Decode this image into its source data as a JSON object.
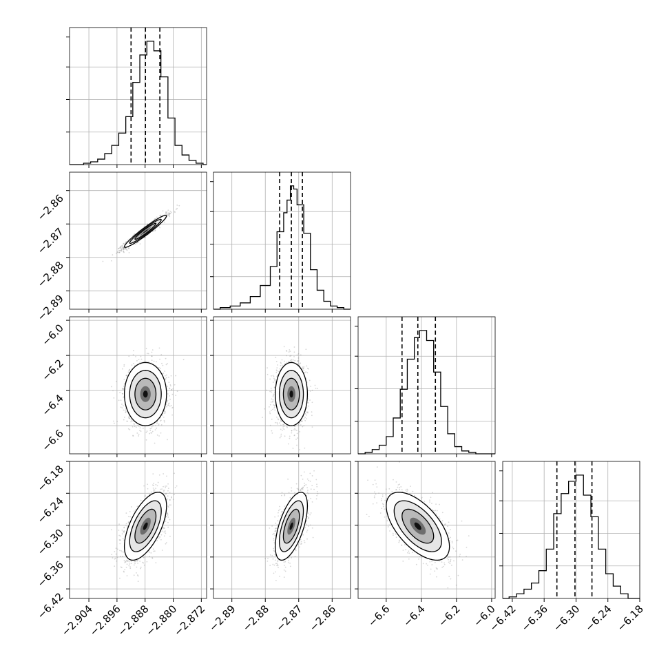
{
  "chart_data": {
    "type": "corner",
    "n_params": 4,
    "grid": true,
    "parameters": [
      {
        "quantiles": [
          -2.892,
          -2.8879,
          -2.8838
        ],
        "range": [
          -2.9095,
          -2.8705
        ],
        "ticks": [
          {
            "value": -2.904,
            "label": "−2.904"
          },
          {
            "value": -2.896,
            "label": "−2.896"
          },
          {
            "value": -2.888,
            "label": "−2.888"
          },
          {
            "value": -2.88,
            "label": "−2.880"
          },
          {
            "value": -2.872,
            "label": "−2.872"
          }
        ],
        "histogram": [
          {
            "left": -2.9095,
            "right": -2.9055,
            "count": 0
          },
          {
            "left": -2.9055,
            "right": -2.9035,
            "count": 1
          },
          {
            "left": -2.9035,
            "right": -2.9015,
            "count": 2
          },
          {
            "left": -2.9015,
            "right": -2.8995,
            "count": 4
          },
          {
            "left": -2.8995,
            "right": -2.8975,
            "count": 8
          },
          {
            "left": -2.8975,
            "right": -2.8955,
            "count": 14
          },
          {
            "left": -2.8955,
            "right": -2.8935,
            "count": 23
          },
          {
            "left": -2.8935,
            "right": -2.8915,
            "count": 35
          },
          {
            "left": -2.8915,
            "right": -2.8895,
            "count": 60
          },
          {
            "left": -2.8895,
            "right": -2.8875,
            "count": 80
          },
          {
            "left": -2.8875,
            "right": -2.8855,
            "count": 90
          },
          {
            "left": -2.8855,
            "right": -2.8835,
            "count": 83
          },
          {
            "left": -2.8835,
            "right": -2.8815,
            "count": 64
          },
          {
            "left": -2.8815,
            "right": -2.8795,
            "count": 34
          },
          {
            "left": -2.8795,
            "right": -2.8775,
            "count": 14
          },
          {
            "left": -2.8775,
            "right": -2.8755,
            "count": 7
          },
          {
            "left": -2.8755,
            "right": -2.8735,
            "count": 3
          },
          {
            "left": -2.8735,
            "right": -2.8715,
            "count": 1
          },
          {
            "left": -2.8715,
            "right": -2.8705,
            "count": 0
          }
        ]
      },
      {
        "quantiles": [
          -2.8757,
          -2.8722,
          -2.8689
        ],
        "range": [
          -2.8955,
          -2.8545
        ],
        "ticks": [
          {
            "value": -2.89,
            "label": "−2.89"
          },
          {
            "value": -2.88,
            "label": "−2.88"
          },
          {
            "value": -2.87,
            "label": "−2.87"
          },
          {
            "value": -2.86,
            "label": "−2.86"
          }
        ],
        "histogram": [
          {
            "left": -2.8955,
            "right": -2.8935,
            "count": 0
          },
          {
            "left": -2.8935,
            "right": -2.8905,
            "count": 1
          },
          {
            "left": -2.8905,
            "right": -2.8875,
            "count": 2
          },
          {
            "left": -2.8875,
            "right": -2.8845,
            "count": 4
          },
          {
            "left": -2.8845,
            "right": -2.8815,
            "count": 8
          },
          {
            "left": -2.8815,
            "right": -2.8785,
            "count": 15
          },
          {
            "left": -2.8785,
            "right": -2.8765,
            "count": 27
          },
          {
            "left": -2.8765,
            "right": -2.8745,
            "count": 49
          },
          {
            "left": -2.8745,
            "right": -2.8735,
            "count": 61
          },
          {
            "left": -2.8735,
            "right": -2.8725,
            "count": 69
          },
          {
            "left": -2.8725,
            "right": -2.8715,
            "count": 78
          },
          {
            "left": -2.8715,
            "right": -2.8705,
            "count": 76
          },
          {
            "left": -2.8705,
            "right": -2.8685,
            "count": 66
          },
          {
            "left": -2.8685,
            "right": -2.8665,
            "count": 48
          },
          {
            "left": -2.8665,
            "right": -2.8645,
            "count": 25
          },
          {
            "left": -2.8645,
            "right": -2.8625,
            "count": 12
          },
          {
            "left": -2.8625,
            "right": -2.8605,
            "count": 5
          },
          {
            "left": -2.8605,
            "right": -2.8585,
            "count": 2
          },
          {
            "left": -2.8585,
            "right": -2.8565,
            "count": 1
          },
          {
            "left": -2.8565,
            "right": -2.8545,
            "count": 0
          }
        ]
      },
      {
        "quantiles": [
          -6.51,
          -6.42,
          -6.32
        ],
        "range": [
          -6.76,
          -5.98
        ],
        "ticks": [
          {
            "value": -6.6,
            "label": "−6.6"
          },
          {
            "value": -6.4,
            "label": "−6.4"
          },
          {
            "value": -6.2,
            "label": "−6.2"
          },
          {
            "value": -6.0,
            "label": "−6.0"
          }
        ],
        "histogram": [
          {
            "left": -6.76,
            "right": -6.72,
            "count": 0
          },
          {
            "left": -6.72,
            "right": -6.68,
            "count": 1
          },
          {
            "left": -6.68,
            "right": -6.64,
            "count": 3
          },
          {
            "left": -6.64,
            "right": -6.6,
            "count": 6
          },
          {
            "left": -6.6,
            "right": -6.56,
            "count": 12
          },
          {
            "left": -6.56,
            "right": -6.52,
            "count": 25
          },
          {
            "left": -6.52,
            "right": -6.48,
            "count": 45
          },
          {
            "left": -6.48,
            "right": -6.44,
            "count": 66
          },
          {
            "left": -6.44,
            "right": -6.41,
            "count": 81
          },
          {
            "left": -6.41,
            "right": -6.37,
            "count": 86
          },
          {
            "left": -6.37,
            "right": -6.33,
            "count": 79
          },
          {
            "left": -6.33,
            "right": -6.29,
            "count": 57
          },
          {
            "left": -6.29,
            "right": -6.25,
            "count": 33
          },
          {
            "left": -6.25,
            "right": -6.21,
            "count": 14
          },
          {
            "left": -6.21,
            "right": -6.17,
            "count": 5
          },
          {
            "left": -6.17,
            "right": -6.13,
            "count": 2
          },
          {
            "left": -6.13,
            "right": -6.09,
            "count": 1
          },
          {
            "left": -6.09,
            "right": -5.98,
            "count": 0
          }
        ]
      },
      {
        "quantiles": [
          -6.336,
          -6.302,
          -6.27
        ],
        "range": [
          -6.438,
          -6.18
        ],
        "ticks": [
          {
            "value": -6.42,
            "label": "−6.42"
          },
          {
            "value": -6.36,
            "label": "−6.36"
          },
          {
            "value": -6.3,
            "label": "−6.30"
          },
          {
            "value": -6.24,
            "label": "−6.24"
          },
          {
            "value": -6.18,
            "label": "−6.18"
          }
        ],
        "histogram": [
          {
            "left": -6.438,
            "right": -6.426,
            "count": 0
          },
          {
            "left": -6.426,
            "right": -6.412,
            "count": 1
          },
          {
            "left": -6.412,
            "right": -6.398,
            "count": 3
          },
          {
            "left": -6.398,
            "right": -6.384,
            "count": 6
          },
          {
            "left": -6.384,
            "right": -6.37,
            "count": 10
          },
          {
            "left": -6.37,
            "right": -6.356,
            "count": 18
          },
          {
            "left": -6.356,
            "right": -6.342,
            "count": 32
          },
          {
            "left": -6.342,
            "right": -6.328,
            "count": 55
          },
          {
            "left": -6.328,
            "right": -6.314,
            "count": 68
          },
          {
            "left": -6.314,
            "right": -6.3,
            "count": 76
          },
          {
            "left": -6.3,
            "right": -6.286,
            "count": 80
          },
          {
            "left": -6.286,
            "right": -6.272,
            "count": 67
          },
          {
            "left": -6.272,
            "right": -6.258,
            "count": 53
          },
          {
            "left": -6.258,
            "right": -6.244,
            "count": 32
          },
          {
            "left": -6.244,
            "right": -6.23,
            "count": 16
          },
          {
            "left": -6.23,
            "right": -6.216,
            "count": 8
          },
          {
            "left": -6.216,
            "right": -6.202,
            "count": 3
          },
          {
            "left": -6.202,
            "right": -6.18,
            "count": 0
          }
        ]
      }
    ],
    "pairs": [
      {
        "row": 1,
        "col": 0,
        "mean": [
          -2.8879,
          -2.8722
        ],
        "sigma": [
          0.003,
          0.0024
        ],
        "corr": 0.96
      },
      {
        "row": 2,
        "col": 0,
        "mean": [
          -2.8879,
          -6.42
        ],
        "sigma": [
          0.003,
          0.09
        ],
        "corr": 0.0
      },
      {
        "row": 2,
        "col": 1,
        "mean": [
          -2.8722,
          -6.42
        ],
        "sigma": [
          0.0024,
          0.09
        ],
        "corr": 0.0
      },
      {
        "row": 3,
        "col": 0,
        "mean": [
          -2.8879,
          -6.302
        ],
        "sigma": [
          0.003,
          0.032
        ],
        "corr": 0.6
      },
      {
        "row": 3,
        "col": 1,
        "mean": [
          -2.8722,
          -6.302
        ],
        "sigma": [
          0.0024,
          0.032
        ],
        "corr": 0.6
      },
      {
        "row": 3,
        "col": 2,
        "mean": [
          -6.42,
          -6.302
        ],
        "sigma": [
          0.09,
          0.032
        ],
        "corr": -0.6
      }
    ]
  },
  "colors": {
    "line": "#000000",
    "grid": "#b0b0b0",
    "samples": "#8a8a8a",
    "fill_light": "#ffffff"
  }
}
